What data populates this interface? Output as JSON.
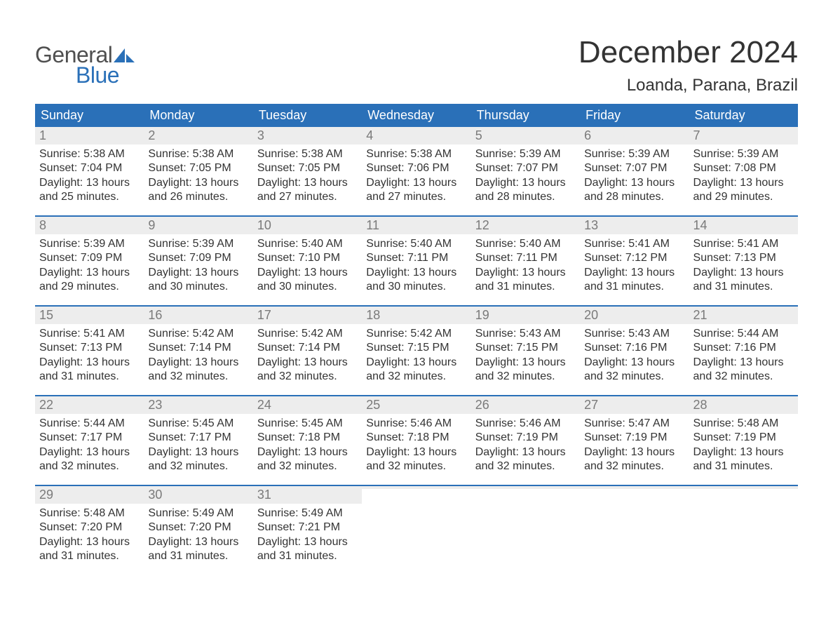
{
  "brand": {
    "line1": "General",
    "line2": "Blue"
  },
  "title": "December 2024",
  "location": "Loanda, Parana, Brazil",
  "colors": {
    "header_bg": "#2a70b8",
    "header_text": "#ffffff",
    "daynum_bg": "#ededed",
    "daynum_text": "#7a7a7a",
    "body_text": "#333333",
    "week_divider": "#2a70b8",
    "logo_gray": "#4f4f4f",
    "logo_blue": "#2a70b8",
    "page_bg": "#ffffff"
  },
  "typography": {
    "title_fontsize": 44,
    "location_fontsize": 24,
    "weekday_fontsize": 18,
    "daynum_fontsize": 18,
    "body_fontsize": 16,
    "logo_fontsize": 32
  },
  "calendar": {
    "type": "table",
    "columns": [
      "Sunday",
      "Monday",
      "Tuesday",
      "Wednesday",
      "Thursday",
      "Friday",
      "Saturday"
    ],
    "weeks": [
      [
        {
          "day": 1,
          "sunrise": "5:38 AM",
          "sunset": "7:04 PM",
          "daylight_hours": 13,
          "daylight_minutes": 25
        },
        {
          "day": 2,
          "sunrise": "5:38 AM",
          "sunset": "7:05 PM",
          "daylight_hours": 13,
          "daylight_minutes": 26
        },
        {
          "day": 3,
          "sunrise": "5:38 AM",
          "sunset": "7:05 PM",
          "daylight_hours": 13,
          "daylight_minutes": 27
        },
        {
          "day": 4,
          "sunrise": "5:38 AM",
          "sunset": "7:06 PM",
          "daylight_hours": 13,
          "daylight_minutes": 27
        },
        {
          "day": 5,
          "sunrise": "5:39 AM",
          "sunset": "7:07 PM",
          "daylight_hours": 13,
          "daylight_minutes": 28
        },
        {
          "day": 6,
          "sunrise": "5:39 AM",
          "sunset": "7:07 PM",
          "daylight_hours": 13,
          "daylight_minutes": 28
        },
        {
          "day": 7,
          "sunrise": "5:39 AM",
          "sunset": "7:08 PM",
          "daylight_hours": 13,
          "daylight_minutes": 29
        }
      ],
      [
        {
          "day": 8,
          "sunrise": "5:39 AM",
          "sunset": "7:09 PM",
          "daylight_hours": 13,
          "daylight_minutes": 29
        },
        {
          "day": 9,
          "sunrise": "5:39 AM",
          "sunset": "7:09 PM",
          "daylight_hours": 13,
          "daylight_minutes": 30
        },
        {
          "day": 10,
          "sunrise": "5:40 AM",
          "sunset": "7:10 PM",
          "daylight_hours": 13,
          "daylight_minutes": 30
        },
        {
          "day": 11,
          "sunrise": "5:40 AM",
          "sunset": "7:11 PM",
          "daylight_hours": 13,
          "daylight_minutes": 30
        },
        {
          "day": 12,
          "sunrise": "5:40 AM",
          "sunset": "7:11 PM",
          "daylight_hours": 13,
          "daylight_minutes": 31
        },
        {
          "day": 13,
          "sunrise": "5:41 AM",
          "sunset": "7:12 PM",
          "daylight_hours": 13,
          "daylight_minutes": 31
        },
        {
          "day": 14,
          "sunrise": "5:41 AM",
          "sunset": "7:13 PM",
          "daylight_hours": 13,
          "daylight_minutes": 31
        }
      ],
      [
        {
          "day": 15,
          "sunrise": "5:41 AM",
          "sunset": "7:13 PM",
          "daylight_hours": 13,
          "daylight_minutes": 31
        },
        {
          "day": 16,
          "sunrise": "5:42 AM",
          "sunset": "7:14 PM",
          "daylight_hours": 13,
          "daylight_minutes": 32
        },
        {
          "day": 17,
          "sunrise": "5:42 AM",
          "sunset": "7:14 PM",
          "daylight_hours": 13,
          "daylight_minutes": 32
        },
        {
          "day": 18,
          "sunrise": "5:42 AM",
          "sunset": "7:15 PM",
          "daylight_hours": 13,
          "daylight_minutes": 32
        },
        {
          "day": 19,
          "sunrise": "5:43 AM",
          "sunset": "7:15 PM",
          "daylight_hours": 13,
          "daylight_minutes": 32
        },
        {
          "day": 20,
          "sunrise": "5:43 AM",
          "sunset": "7:16 PM",
          "daylight_hours": 13,
          "daylight_minutes": 32
        },
        {
          "day": 21,
          "sunrise": "5:44 AM",
          "sunset": "7:16 PM",
          "daylight_hours": 13,
          "daylight_minutes": 32
        }
      ],
      [
        {
          "day": 22,
          "sunrise": "5:44 AM",
          "sunset": "7:17 PM",
          "daylight_hours": 13,
          "daylight_minutes": 32
        },
        {
          "day": 23,
          "sunrise": "5:45 AM",
          "sunset": "7:17 PM",
          "daylight_hours": 13,
          "daylight_minutes": 32
        },
        {
          "day": 24,
          "sunrise": "5:45 AM",
          "sunset": "7:18 PM",
          "daylight_hours": 13,
          "daylight_minutes": 32
        },
        {
          "day": 25,
          "sunrise": "5:46 AM",
          "sunset": "7:18 PM",
          "daylight_hours": 13,
          "daylight_minutes": 32
        },
        {
          "day": 26,
          "sunrise": "5:46 AM",
          "sunset": "7:19 PM",
          "daylight_hours": 13,
          "daylight_minutes": 32
        },
        {
          "day": 27,
          "sunrise": "5:47 AM",
          "sunset": "7:19 PM",
          "daylight_hours": 13,
          "daylight_minutes": 32
        },
        {
          "day": 28,
          "sunrise": "5:48 AM",
          "sunset": "7:19 PM",
          "daylight_hours": 13,
          "daylight_minutes": 31
        }
      ],
      [
        {
          "day": 29,
          "sunrise": "5:48 AM",
          "sunset": "7:20 PM",
          "daylight_hours": 13,
          "daylight_minutes": 31
        },
        {
          "day": 30,
          "sunrise": "5:49 AM",
          "sunset": "7:20 PM",
          "daylight_hours": 13,
          "daylight_minutes": 31
        },
        {
          "day": 31,
          "sunrise": "5:49 AM",
          "sunset": "7:21 PM",
          "daylight_hours": 13,
          "daylight_minutes": 31
        },
        null,
        null,
        null,
        null
      ]
    ],
    "labels": {
      "sunrise_prefix": "Sunrise: ",
      "sunset_prefix": "Sunset: ",
      "daylight_prefix": "Daylight: ",
      "hours_word": " hours",
      "and_word": "and ",
      "minutes_word": " minutes."
    }
  }
}
